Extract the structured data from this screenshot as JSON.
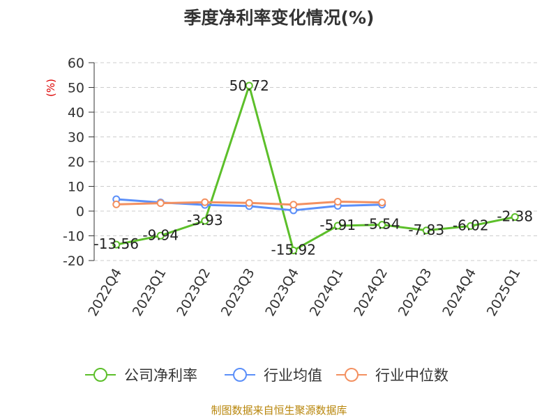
{
  "title": "季度净利率变化情况(%)",
  "source_note": "制图数据来自恒生聚源数据库",
  "chart_data": {
    "type": "line",
    "title": "季度净利率变化情况(%)",
    "ylabel": "(%)",
    "xlabel": "",
    "ylim": [
      -20,
      60
    ],
    "yticks": [
      60,
      50,
      40,
      30,
      20,
      10,
      0,
      -10,
      -20
    ],
    "grid": true,
    "legend_position": "bottom",
    "categories": [
      "2022Q4",
      "2023Q1",
      "2023Q2",
      "2023Q3",
      "2023Q4",
      "2024Q1",
      "2024Q2",
      "2024Q3",
      "2024Q4",
      "2025Q1"
    ],
    "series": [
      {
        "name": "公司净利率",
        "color": "#5cbf2a",
        "values": [
          -13.56,
          -9.94,
          -3.93,
          50.72,
          -15.92,
          -5.91,
          -5.54,
          -7.83,
          -6.02,
          -2.38
        ],
        "labels": [
          "-13.56",
          "-9.94",
          "-3.93",
          "50.72",
          "-15.92",
          "-5.91",
          "-5.54",
          "-7.83",
          "-6.02",
          "-2.38"
        ]
      },
      {
        "name": "行业均值",
        "color": "#5b8ff9",
        "values": [
          4.8,
          3.5,
          2.5,
          2.0,
          0.3,
          2.1,
          2.6,
          null,
          null,
          null
        ]
      },
      {
        "name": "行业中位数",
        "color": "#f39060",
        "values": [
          2.7,
          3.2,
          3.6,
          3.3,
          2.6,
          3.8,
          3.5,
          null,
          null,
          null
        ]
      }
    ]
  }
}
